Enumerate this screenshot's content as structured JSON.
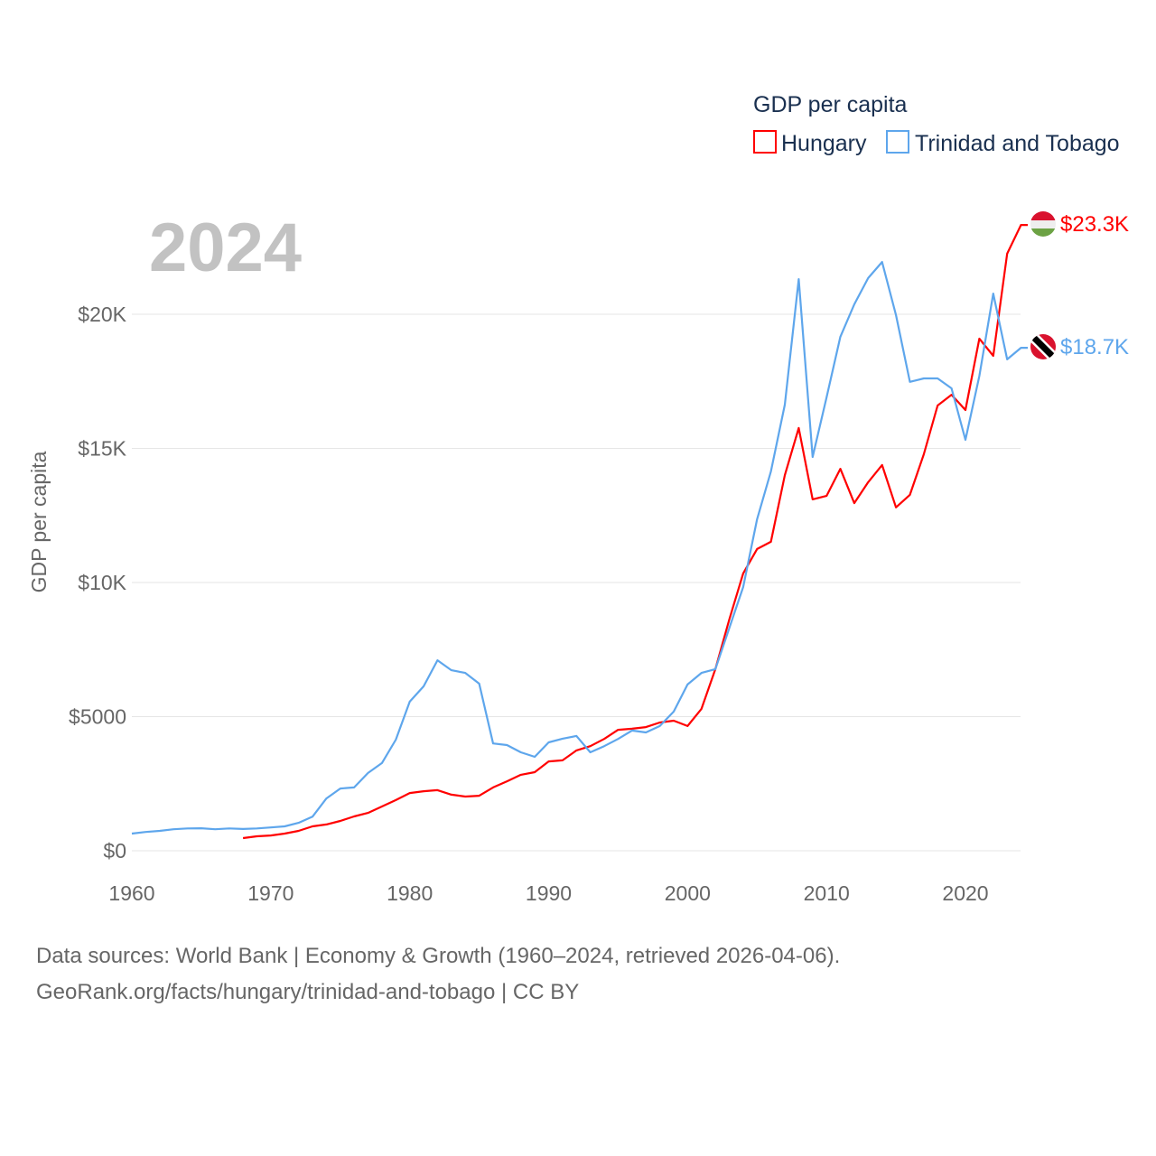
{
  "chart_data": {
    "type": "line",
    "title": "GDP per capita",
    "year_label": "2024",
    "xlabel": "",
    "ylabel": "GDP per capita",
    "xlim": [
      1960,
      2024
    ],
    "ylim": [
      0,
      24000
    ],
    "grid": true,
    "legend_position": "top-right",
    "x_ticks": [
      1960,
      1970,
      1980,
      1990,
      2000,
      2010,
      2020
    ],
    "x_tick_labels": [
      "1960",
      "1970",
      "1980",
      "1990",
      "2000",
      "2010",
      "2020"
    ],
    "y_ticks": [
      0,
      5000,
      10000,
      15000,
      20000
    ],
    "y_tick_labels": [
      "$0",
      "$5000",
      "$10K",
      "$15K",
      "$20K"
    ],
    "series": [
      {
        "name": "Hungary",
        "color": "#ff0000",
        "end_label": "$23.3K",
        "flag": "hungary-flag",
        "start_year": 1968,
        "values": [
          470,
          540,
          570,
          640,
          740,
          910,
          980,
          1110,
          1280,
          1410,
          1650,
          1890,
          2150,
          2220,
          2260,
          2090,
          2020,
          2050,
          2360,
          2590,
          2830,
          2930,
          3330,
          3370,
          3740,
          3900,
          4170,
          4510,
          4550,
          4610,
          4780,
          4850,
          4650,
          5290,
          6770,
          8620,
          10340,
          11250,
          11520,
          14000,
          15760,
          13100,
          13230,
          14240,
          12960,
          13740,
          14380,
          12800,
          13270,
          14780,
          16600,
          17000,
          16430,
          19090,
          18450,
          22260,
          23330
        ]
      },
      {
        "name": "Trinidad and Tobago",
        "color": "#5ea6ec",
        "end_label": "$18.7K",
        "flag": "trinidad-and-tobago-flag",
        "start_year": 1960,
        "values": [
          640,
          700,
          740,
          800,
          830,
          840,
          800,
          830,
          810,
          830,
          870,
          910,
          1040,
          1270,
          1950,
          2320,
          2360,
          2900,
          3270,
          4140,
          5560,
          6130,
          7100,
          6730,
          6630,
          6230,
          4000,
          3940,
          3670,
          3500,
          4040,
          4180,
          4280,
          3670,
          3900,
          4170,
          4480,
          4410,
          4650,
          5190,
          6200,
          6630,
          6770,
          8300,
          9830,
          12360,
          14140,
          16630,
          21310,
          14680,
          16900,
          19160,
          20370,
          21350,
          21950,
          19970,
          17480,
          17610,
          17610,
          17240,
          15320,
          17700,
          20770,
          18320,
          18750
        ]
      }
    ]
  },
  "footer": {
    "line1": "Data sources: World Bank | Economy & Growth (1960–2024, retrieved 2026-04-06).",
    "line2": "GeoRank.org/facts/hungary/trinidad-and-tobago | CC BY"
  }
}
